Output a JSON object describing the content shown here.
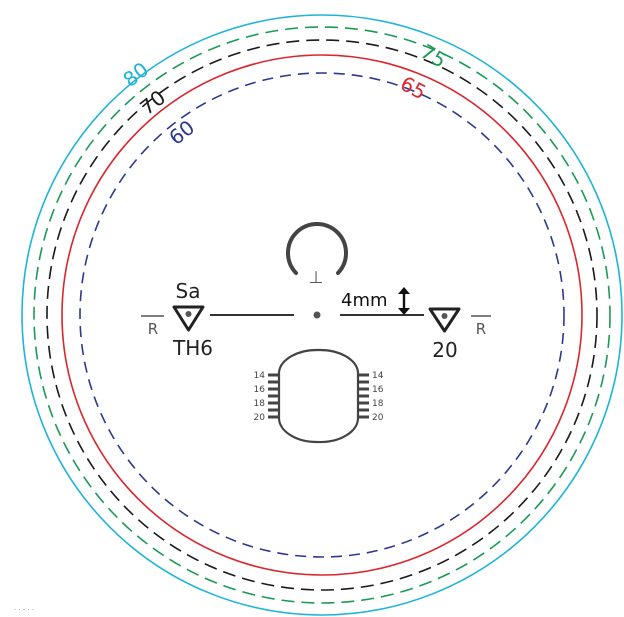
{
  "rings": [
    {
      "label": "80",
      "color": "#1eb4d8",
      "style": "solid"
    },
    {
      "label": "75",
      "color": "#1a9a55",
      "style": "dashed"
    },
    {
      "label": "70",
      "color": "#1a1a1a",
      "style": "dashed"
    },
    {
      "label": "65",
      "color": "#d9272e",
      "style": "solid"
    },
    {
      "label": "60",
      "color": "#2b3990",
      "style": "dashed"
    }
  ],
  "left_marker": {
    "top_label": "Sa",
    "bottom_label": "TH6",
    "side_label": "R"
  },
  "right_marker": {
    "bottom_label": "20",
    "side_label": "R"
  },
  "distance_label": "4mm",
  "spec_top_symbol": "⊥",
  "ladder_left": [
    "14",
    "16",
    "18",
    "20"
  ],
  "ladder_right": [
    "14",
    "16",
    "18",
    "20"
  ],
  "footer_mark": "· · · · ·",
  "colors": {
    "ink": "#333333",
    "dot": "#555555"
  }
}
